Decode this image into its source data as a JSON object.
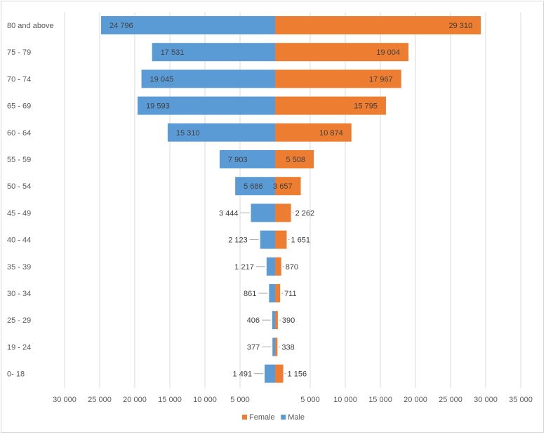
{
  "chart_data": {
    "type": "bar",
    "orientation": "horizontal",
    "style": "population-pyramid",
    "title": "",
    "categories": [
      "80 and above",
      "75 - 79",
      "70 - 74",
      "65 - 69",
      "60 - 64",
      "55 - 59",
      "50 - 54",
      "45 - 49",
      "40 - 44",
      "35 - 39",
      "30 - 34",
      "25 - 29",
      "19 - 24",
      "0- 18"
    ],
    "series": [
      {
        "name": "Male",
        "color": "#5b9bd5",
        "values": [
          24796,
          17531,
          19045,
          19593,
          15310,
          7903,
          5686,
          3444,
          2123,
          1217,
          861,
          406,
          377,
          1491
        ],
        "value_labels": [
          "24 796",
          "17 531",
          "19 045",
          "19 593",
          "15 310",
          "7 903",
          "5 686",
          "3 444",
          "2 123",
          "1 217",
          "861",
          "406",
          "377",
          "1 491"
        ]
      },
      {
        "name": "Female",
        "color": "#ed7d31",
        "values": [
          29310,
          19004,
          17967,
          15795,
          10874,
          5508,
          3657,
          2262,
          1651,
          870,
          711,
          390,
          338,
          1156
        ],
        "value_labels": [
          "29 310",
          "19 004",
          "17 967",
          "15 795",
          "10 874",
          "5 508",
          "3 657",
          "2 262",
          "1 651",
          "870",
          "711",
          "390",
          "338",
          "1 156"
        ]
      }
    ],
    "x_axis": {
      "left_ticks": [
        "30 000",
        "25 000",
        "20 000",
        "15 000",
        "10 000",
        "5 000"
      ],
      "right_ticks": [
        "5 000",
        "10 000",
        "15 000",
        "20 000",
        "25 000",
        "30 000",
        "35 000"
      ]
    },
    "xlim_male": [
      0,
      30000
    ],
    "xlim_female": [
      0,
      35000
    ],
    "legend": {
      "position": "bottom",
      "entries": [
        "Female",
        "Male"
      ]
    },
    "grid": true
  }
}
